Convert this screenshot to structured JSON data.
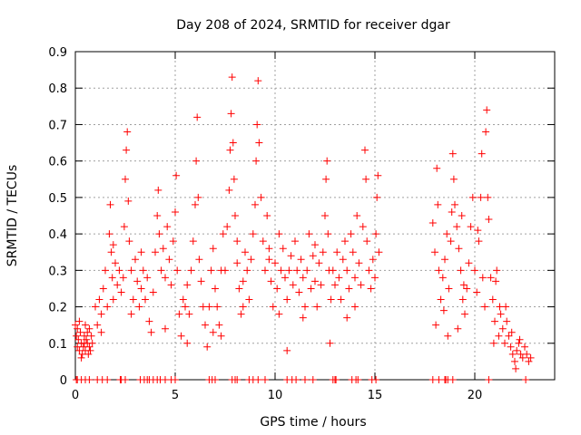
{
  "chart_data": {
    "type": "scatter",
    "title": "Day 208 of 2024, SRMTID for receiver dgar",
    "xlabel": "GPS time / hours",
    "ylabel": "SRMTID / TECUs",
    "xlim": [
      0,
      24
    ],
    "ylim": [
      0,
      0.9
    ],
    "xticks": [
      0,
      5,
      10,
      15,
      20
    ],
    "xtick_labels": [
      "0",
      "5",
      "10",
      "15",
      "20"
    ],
    "yticks": [
      0,
      0.1,
      0.2,
      0.3,
      0.4,
      0.5,
      0.6,
      0.7,
      0.8,
      0.9
    ],
    "ytick_labels": [
      "0",
      "0.1",
      "0.2",
      "0.3",
      "0.4",
      "0.5",
      "0.6",
      "0.7",
      "0.8",
      "0.9"
    ],
    "grid": true,
    "marker": "plus",
    "series": [
      {
        "name": "SRMTID",
        "color": "#ff0000",
        "points": [
          [
            0.0,
            0.15
          ],
          [
            0.05,
            0.12
          ],
          [
            0.1,
            0.09
          ],
          [
            0.15,
            0.11
          ],
          [
            0.2,
            0.08
          ],
          [
            0.25,
            0.13
          ],
          [
            0.3,
            0.1
          ],
          [
            0.35,
            0.07
          ],
          [
            0.4,
            0.09
          ],
          [
            0.45,
            0.12
          ],
          [
            0.5,
            0.08
          ],
          [
            0.55,
            0.11
          ],
          [
            0.6,
            0.1
          ],
          [
            0.65,
            0.07
          ],
          [
            0.7,
            0.09
          ],
          [
            0.75,
            0.08
          ],
          [
            0.8,
            0.12
          ],
          [
            0.1,
            0.14
          ],
          [
            0.3,
            0.06
          ],
          [
            0.6,
            0.13
          ],
          [
            0.2,
            0.16
          ],
          [
            0.45,
            0.1
          ],
          [
            0.7,
            0.14
          ],
          [
            0.5,
            0.15
          ],
          [
            0.85,
            0.1
          ],
          [
            1.0,
            0.2
          ],
          [
            1.1,
            0.15
          ],
          [
            1.2,
            0.22
          ],
          [
            1.3,
            0.18
          ],
          [
            1.4,
            0.25
          ],
          [
            1.5,
            0.3
          ],
          [
            1.6,
            0.2
          ],
          [
            1.7,
            0.4
          ],
          [
            1.75,
            0.48
          ],
          [
            1.8,
            0.35
          ],
          [
            1.85,
            0.28
          ],
          [
            1.9,
            0.22
          ],
          [
            2.0,
            0.32
          ],
          [
            2.1,
            0.26
          ],
          [
            2.2,
            0.3
          ],
          [
            2.3,
            0.24
          ],
          [
            2.4,
            0.28
          ],
          [
            2.45,
            0.42
          ],
          [
            2.5,
            0.55
          ],
          [
            2.55,
            0.63
          ],
          [
            2.6,
            0.68
          ],
          [
            2.65,
            0.49
          ],
          [
            2.7,
            0.38
          ],
          [
            2.8,
            0.3
          ],
          [
            2.9,
            0.22
          ],
          [
            3.0,
            0.33
          ],
          [
            3.1,
            0.27
          ],
          [
            3.2,
            0.2
          ],
          [
            3.3,
            0.25
          ],
          [
            3.4,
            0.3
          ],
          [
            3.5,
            0.22
          ],
          [
            3.6,
            0.28
          ],
          [
            3.7,
            0.16
          ],
          [
            3.8,
            0.13
          ],
          [
            3.9,
            0.24
          ],
          [
            4.0,
            0.35
          ],
          [
            4.1,
            0.45
          ],
          [
            4.15,
            0.52
          ],
          [
            4.2,
            0.4
          ],
          [
            4.3,
            0.3
          ],
          [
            4.4,
            0.36
          ],
          [
            4.5,
            0.28
          ],
          [
            4.6,
            0.42
          ],
          [
            4.7,
            0.33
          ],
          [
            4.8,
            0.26
          ],
          [
            4.9,
            0.38
          ],
          [
            5.0,
            0.46
          ],
          [
            5.05,
            0.56
          ],
          [
            5.1,
            0.3
          ],
          [
            5.2,
            0.18
          ],
          [
            5.3,
            0.12
          ],
          [
            5.4,
            0.22
          ],
          [
            5.5,
            0.2
          ],
          [
            5.6,
            0.26
          ],
          [
            5.7,
            0.18
          ],
          [
            5.8,
            0.3
          ],
          [
            5.9,
            0.38
          ],
          [
            6.0,
            0.48
          ],
          [
            6.05,
            0.6
          ],
          [
            6.1,
            0.72
          ],
          [
            6.15,
            0.5
          ],
          [
            6.2,
            0.33
          ],
          [
            6.3,
            0.27
          ],
          [
            6.4,
            0.2
          ],
          [
            6.5,
            0.15
          ],
          [
            6.6,
            0.09
          ],
          [
            6.7,
            0.2
          ],
          [
            6.8,
            0.3
          ],
          [
            6.9,
            0.36
          ],
          [
            7.0,
            0.25
          ],
          [
            7.1,
            0.2
          ],
          [
            7.2,
            0.15
          ],
          [
            7.3,
            0.3
          ],
          [
            7.4,
            0.4
          ],
          [
            7.5,
            0.3
          ],
          [
            7.6,
            0.42
          ],
          [
            7.7,
            0.52
          ],
          [
            7.75,
            0.63
          ],
          [
            7.8,
            0.73
          ],
          [
            7.85,
            0.83
          ],
          [
            7.9,
            0.65
          ],
          [
            7.95,
            0.55
          ],
          [
            8.0,
            0.45
          ],
          [
            8.1,
            0.32
          ],
          [
            8.2,
            0.25
          ],
          [
            8.3,
            0.18
          ],
          [
            8.4,
            0.27
          ],
          [
            8.5,
            0.35
          ],
          [
            8.6,
            0.3
          ],
          [
            8.7,
            0.22
          ],
          [
            8.8,
            0.33
          ],
          [
            8.9,
            0.4
          ],
          [
            9.0,
            0.48
          ],
          [
            9.05,
            0.6
          ],
          [
            9.1,
            0.7
          ],
          [
            9.15,
            0.82
          ],
          [
            9.2,
            0.65
          ],
          [
            9.3,
            0.5
          ],
          [
            9.4,
            0.38
          ],
          [
            9.5,
            0.3
          ],
          [
            9.6,
            0.45
          ],
          [
            9.7,
            0.33
          ],
          [
            9.8,
            0.27
          ],
          [
            9.9,
            0.2
          ],
          [
            10.0,
            0.32
          ],
          [
            10.1,
            0.25
          ],
          [
            10.2,
            0.18
          ],
          [
            10.3,
            0.3
          ],
          [
            10.4,
            0.36
          ],
          [
            10.5,
            0.28
          ],
          [
            10.6,
            0.22
          ],
          [
            10.7,
            0.3
          ],
          [
            10.8,
            0.34
          ],
          [
            10.9,
            0.26
          ],
          [
            11.0,
            0.38
          ],
          [
            11.1,
            0.3
          ],
          [
            11.2,
            0.24
          ],
          [
            11.3,
            0.33
          ],
          [
            11.4,
            0.28
          ],
          [
            11.5,
            0.2
          ],
          [
            11.6,
            0.3
          ],
          [
            11.7,
            0.4
          ],
          [
            11.8,
            0.25
          ],
          [
            11.9,
            0.34
          ],
          [
            12.0,
            0.27
          ],
          [
            12.1,
            0.2
          ],
          [
            12.2,
            0.32
          ],
          [
            12.3,
            0.26
          ],
          [
            12.4,
            0.35
          ],
          [
            12.5,
            0.45
          ],
          [
            12.55,
            0.55
          ],
          [
            12.6,
            0.6
          ],
          [
            12.65,
            0.4
          ],
          [
            12.7,
            0.3
          ],
          [
            12.75,
            0.1
          ],
          [
            12.8,
            0.22
          ],
          [
            12.9,
            0.3
          ],
          [
            13.0,
            0.26
          ],
          [
            13.1,
            0.35
          ],
          [
            13.2,
            0.28
          ],
          [
            13.3,
            0.22
          ],
          [
            13.4,
            0.33
          ],
          [
            13.5,
            0.38
          ],
          [
            13.6,
            0.3
          ],
          [
            13.7,
            0.25
          ],
          [
            13.8,
            0.4
          ],
          [
            13.9,
            0.35
          ],
          [
            14.0,
            0.28
          ],
          [
            14.1,
            0.45
          ],
          [
            14.2,
            0.32
          ],
          [
            14.3,
            0.26
          ],
          [
            14.4,
            0.42
          ],
          [
            14.5,
            0.63
          ],
          [
            14.55,
            0.55
          ],
          [
            14.6,
            0.38
          ],
          [
            14.7,
            0.3
          ],
          [
            14.8,
            0.25
          ],
          [
            14.9,
            0.33
          ],
          [
            15.0,
            0.28
          ],
          [
            15.05,
            0.4
          ],
          [
            15.1,
            0.5
          ],
          [
            15.15,
            0.56
          ],
          [
            15.2,
            0.35
          ],
          [
            1.3,
            0.13
          ],
          [
            2.8,
            0.18
          ],
          [
            4.5,
            0.14
          ],
          [
            6.9,
            0.13
          ],
          [
            8.4,
            0.2
          ],
          [
            10.6,
            0.08
          ],
          [
            11.4,
            0.17
          ],
          [
            13.6,
            0.17
          ],
          [
            5.6,
            0.1
          ],
          [
            3.3,
            0.35
          ],
          [
            9.7,
            0.36
          ],
          [
            12.0,
            0.37
          ],
          [
            7.3,
            0.12
          ],
          [
            14.0,
            0.2
          ],
          [
            10.2,
            0.4
          ],
          [
            1.9,
            0.37
          ],
          [
            8.1,
            0.38
          ],
          [
            17.9,
            0.43
          ],
          [
            18.0,
            0.35
          ],
          [
            18.05,
            0.15
          ],
          [
            18.1,
            0.58
          ],
          [
            18.15,
            0.48
          ],
          [
            18.2,
            0.3
          ],
          [
            18.3,
            0.22
          ],
          [
            18.4,
            0.28
          ],
          [
            18.5,
            0.33
          ],
          [
            18.6,
            0.4
          ],
          [
            18.65,
            0.12
          ],
          [
            18.7,
            0.25
          ],
          [
            18.8,
            0.38
          ],
          [
            18.85,
            0.46
          ],
          [
            18.9,
            0.62
          ],
          [
            18.95,
            0.55
          ],
          [
            19.0,
            0.48
          ],
          [
            19.1,
            0.42
          ],
          [
            19.2,
            0.36
          ],
          [
            19.3,
            0.3
          ],
          [
            19.4,
            0.22
          ],
          [
            19.5,
            0.18
          ],
          [
            19.6,
            0.25
          ],
          [
            19.7,
            0.32
          ],
          [
            19.8,
            0.42
          ],
          [
            19.9,
            0.5
          ],
          [
            20.0,
            0.3
          ],
          [
            20.1,
            0.24
          ],
          [
            20.2,
            0.38
          ],
          [
            20.3,
            0.5
          ],
          [
            20.35,
            0.62
          ],
          [
            20.4,
            0.28
          ],
          [
            20.5,
            0.2
          ],
          [
            20.55,
            0.68
          ],
          [
            20.6,
            0.74
          ],
          [
            20.65,
            0.5
          ],
          [
            20.7,
            0.44
          ],
          [
            20.8,
            0.28
          ],
          [
            20.9,
            0.22
          ],
          [
            21.0,
            0.16
          ],
          [
            21.1,
            0.3
          ],
          [
            21.2,
            0.12
          ],
          [
            21.3,
            0.18
          ],
          [
            21.4,
            0.14
          ],
          [
            21.5,
            0.1
          ],
          [
            21.6,
            0.16
          ],
          [
            21.7,
            0.12
          ],
          [
            21.8,
            0.09
          ],
          [
            21.9,
            0.07
          ],
          [
            22.0,
            0.05
          ],
          [
            22.1,
            0.08
          ],
          [
            22.2,
            0.1
          ],
          [
            22.3,
            0.07
          ],
          [
            22.4,
            0.06
          ],
          [
            22.5,
            0.09
          ],
          [
            22.6,
            0.07
          ],
          [
            22.7,
            0.05
          ],
          [
            22.8,
            0.06
          ],
          [
            22.05,
            0.03
          ],
          [
            21.85,
            0.13
          ],
          [
            19.45,
            0.26
          ],
          [
            21.25,
            0.2
          ],
          [
            20.95,
            0.1
          ],
          [
            18.45,
            0.19
          ],
          [
            19.15,
            0.14
          ],
          [
            21.55,
            0.2
          ],
          [
            22.25,
            0.11
          ],
          [
            20.15,
            0.41
          ],
          [
            19.35,
            0.45
          ],
          [
            21.05,
            0.27
          ]
        ]
      }
    ],
    "zero_points_x": [
      0.05,
      0.1,
      0.3,
      0.5,
      0.7,
      1.1,
      1.35,
      1.6,
      2.25,
      2.3,
      2.5,
      3.25,
      3.45,
      3.6,
      3.7,
      3.9,
      4.1,
      4.25,
      4.5,
      4.8,
      5.0,
      6.7,
      6.85,
      7.0,
      7.85,
      8.0,
      8.1,
      8.7,
      8.9,
      9.15,
      9.5,
      10.6,
      10.85,
      11.05,
      11.5,
      11.9,
      12.9,
      13.0,
      13.05,
      13.85,
      14.05,
      14.15,
      14.85,
      15.05,
      17.9,
      18.2,
      18.5,
      18.55,
      18.65,
      18.9,
      20.7,
      22.55
    ]
  }
}
